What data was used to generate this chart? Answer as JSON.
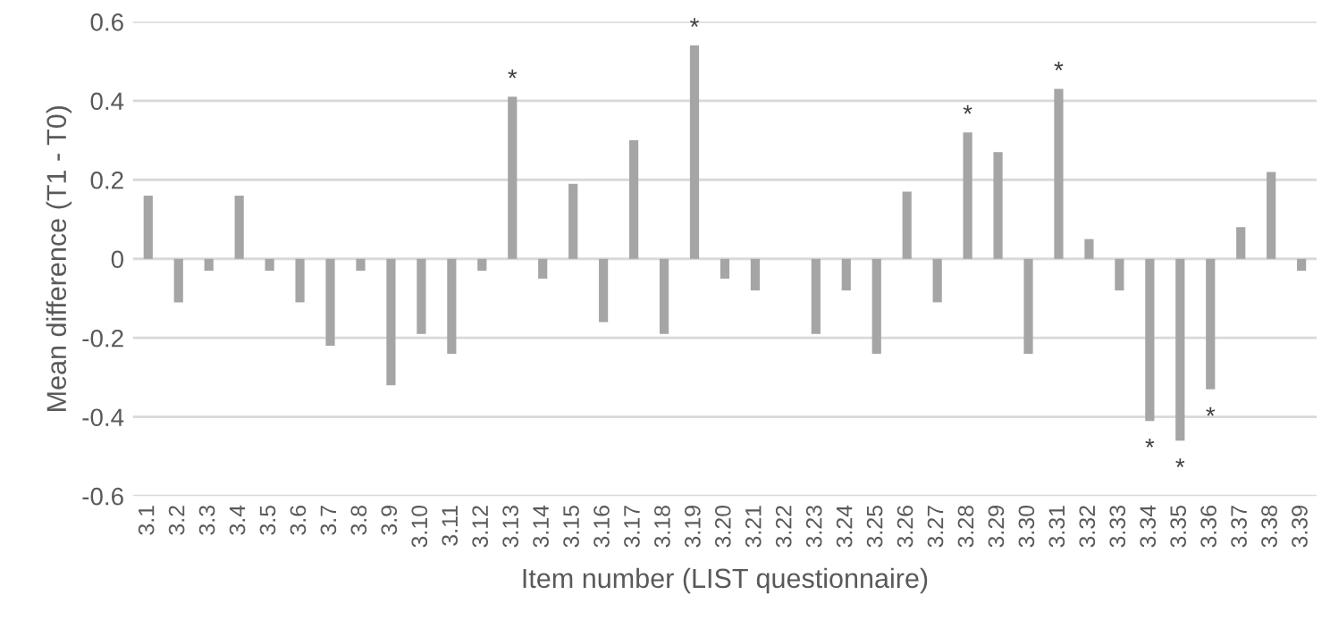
{
  "chart_data": {
    "type": "bar",
    "xlabel": "Item number (LIST questionnaire)",
    "ylabel": "Mean difference (T1 - T0)",
    "categories": [
      "3.1",
      "3.2",
      "3.3",
      "3.4",
      "3.5",
      "3.6",
      "3.7",
      "3.8",
      "3.9",
      "3.10",
      "3.11",
      "3.12",
      "3.13",
      "3.14",
      "3.15",
      "3.16",
      "3.17",
      "3.18",
      "3.19",
      "3.20",
      "3.21",
      "3.22",
      "3.23",
      "3.24",
      "3.25",
      "3.26",
      "3.27",
      "3.28",
      "3.29",
      "3.30",
      "3.31",
      "3.32",
      "3.33",
      "3.34",
      "3.35",
      "3.36",
      "3.37",
      "3.38",
      "3.39"
    ],
    "values": [
      0.16,
      -0.11,
      -0.03,
      0.16,
      -0.03,
      -0.11,
      -0.22,
      -0.03,
      -0.32,
      -0.19,
      -0.24,
      -0.03,
      0.41,
      -0.05,
      0.19,
      -0.16,
      0.3,
      -0.19,
      0.54,
      -0.05,
      -0.08,
      0,
      -0.19,
      -0.08,
      -0.24,
      0.17,
      -0.11,
      0.32,
      0.27,
      -0.24,
      0.43,
      0.05,
      -0.08,
      -0.41,
      -0.46,
      -0.33,
      0.08,
      0.22,
      -0.03
    ],
    "color": "#a5a5a5",
    "ylim": [
      -0.6,
      0.6
    ],
    "yticks": [
      {
        "value": -0.6,
        "label": "-0.6"
      },
      {
        "value": -0.4,
        "label": "-0.4"
      },
      {
        "value": -0.2,
        "label": "-0.2"
      },
      0,
      0.2,
      0.4,
      0.6
    ],
    "grid": "y",
    "annotations": [
      {
        "text": "*",
        "x": "3.13",
        "y": 0.41
      },
      {
        "text": "*",
        "x": "3.19",
        "y": 0.54
      },
      {
        "text": "*",
        "x": "3.28",
        "y": 0.32
      },
      {
        "text": "*",
        "x": "3.31",
        "y": 0.43
      },
      {
        "text": "*",
        "x": "3.34",
        "y": -0.41
      },
      {
        "text": "*",
        "x": "3.35",
        "y": -0.46
      },
      {
        "text": "*",
        "x": "3.36",
        "y": -0.33
      }
    ]
  }
}
